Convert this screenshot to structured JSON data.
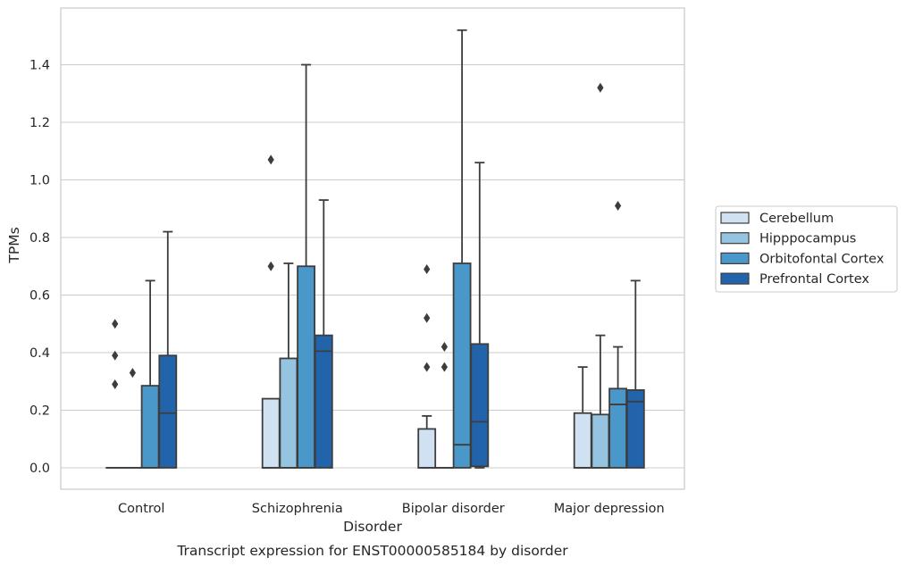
{
  "chart_data": {
    "type": "boxplot",
    "caption": "Transcript expression for ENST00000585184 by disorder",
    "xlabel": "Disorder",
    "ylabel": "TPMs",
    "ylim": [
      -0.07,
      1.59
    ],
    "yticks": [
      0.0,
      0.2,
      0.4,
      0.6,
      0.8,
      1.0,
      1.2,
      1.4
    ],
    "ytick_labels": [
      "0.0",
      "0.2",
      "0.4",
      "0.6",
      "0.8",
      "1.0",
      "1.2",
      "1.4"
    ],
    "grid": "horizontal",
    "legend_position": "right",
    "categories": [
      "Control",
      "Schizophrenia",
      "Bipolar disorder",
      "Major depression"
    ],
    "series": [
      {
        "name": "Cerebellum",
        "color": "#d0e1f2",
        "boxes": [
          {
            "q1": 0.0,
            "median": 0.0,
            "q3": 0.0,
            "whislo": 0.0,
            "whishi": 0.0,
            "fliers": [
              0.5,
              0.39,
              0.29
            ]
          },
          {
            "q1": 0.0,
            "median": 0.0,
            "q3": 0.24,
            "whislo": 0.0,
            "whishi": 0.24,
            "fliers": [
              1.07,
              0.7
            ]
          },
          {
            "q1": 0.0,
            "median": 0.0,
            "q3": 0.135,
            "whislo": 0.0,
            "whishi": 0.18,
            "fliers": [
              0.69,
              0.52,
              0.35
            ]
          },
          {
            "q1": 0.0,
            "median": 0.0,
            "q3": 0.19,
            "whislo": 0.0,
            "whishi": 0.35,
            "fliers": []
          }
        ]
      },
      {
        "name": "Hipppocampus",
        "color": "#94c4df",
        "boxes": [
          {
            "q1": 0.0,
            "median": 0.0,
            "q3": 0.0,
            "whislo": 0.0,
            "whishi": 0.0,
            "fliers": [
              0.33
            ]
          },
          {
            "q1": 0.0,
            "median": 0.0,
            "q3": 0.38,
            "whislo": 0.0,
            "whishi": 0.71,
            "fliers": []
          },
          {
            "q1": 0.0,
            "median": 0.0,
            "q3": 0.0,
            "whislo": 0.0,
            "whishi": 0.0,
            "fliers": [
              0.42,
              0.35
            ]
          },
          {
            "q1": 0.0,
            "median": 0.0,
            "q3": 0.185,
            "whislo": 0.0,
            "whishi": 0.46,
            "fliers": [
              1.32
            ]
          }
        ]
      },
      {
        "name": "Orbitofontal Cortex",
        "color": "#4a98c9",
        "boxes": [
          {
            "q1": 0.0,
            "median": 0.0,
            "q3": 0.285,
            "whislo": 0.0,
            "whishi": 0.65,
            "fliers": []
          },
          {
            "q1": 0.0,
            "median": 0.0,
            "q3": 0.7,
            "whislo": 0.0,
            "whishi": 1.4,
            "fliers": []
          },
          {
            "q1": 0.0,
            "median": 0.08,
            "q3": 0.71,
            "whislo": 0.0,
            "whishi": 1.52,
            "fliers": []
          },
          {
            "q1": 0.0,
            "median": 0.22,
            "q3": 0.275,
            "whislo": 0.0,
            "whishi": 0.42,
            "fliers": [
              0.91
            ]
          }
        ]
      },
      {
        "name": "Prefrontal Cortex",
        "color": "#2264ab",
        "boxes": [
          {
            "q1": 0.0,
            "median": 0.19,
            "q3": 0.39,
            "whislo": 0.0,
            "whishi": 0.82,
            "fliers": []
          },
          {
            "q1": 0.0,
            "median": 0.405,
            "q3": 0.46,
            "whislo": 0.0,
            "whishi": 0.93,
            "fliers": []
          },
          {
            "q1": 0.005,
            "median": 0.16,
            "q3": 0.43,
            "whislo": 0.0,
            "whishi": 1.06,
            "fliers": []
          },
          {
            "q1": 0.0,
            "median": 0.23,
            "q3": 0.27,
            "whislo": 0.0,
            "whishi": 0.65,
            "fliers": []
          }
        ]
      }
    ]
  }
}
